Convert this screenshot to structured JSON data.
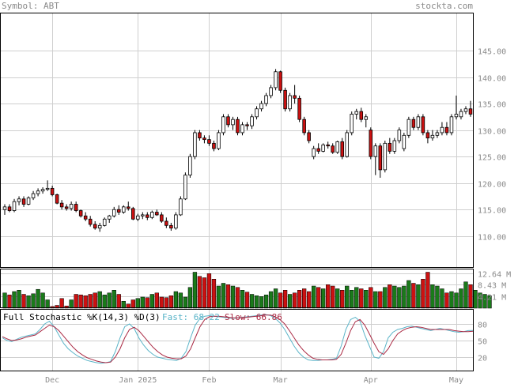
{
  "header": {
    "symbol_label": "Symbol: ABT",
    "site": "stockta.com"
  },
  "chart_data": [
    {
      "type": "candlestick",
      "title": "",
      "ylim": [
        104,
        152
      ],
      "yticks": [
        110,
        115,
        120,
        125,
        130,
        135,
        140,
        145
      ],
      "ytick_labels": [
        "110.00",
        "115.00",
        "120.00",
        "125.00",
        "130.00",
        "135.00",
        "140.00",
        "145.00"
      ],
      "x_labels": [
        "Dec",
        "Jan 2025",
        "Feb",
        "Mar",
        "Apr",
        "May"
      ],
      "grid": true,
      "up_color": "#ffffff",
      "down_color": "#cc1111",
      "ohlc": [
        [
          115.0,
          116.0,
          114.0,
          115.5
        ],
        [
          115.5,
          116.0,
          114.5,
          114.8
        ],
        [
          114.8,
          117.0,
          114.5,
          116.5
        ],
        [
          116.5,
          117.5,
          115.8,
          117.0
        ],
        [
          117.0,
          117.5,
          115.5,
          116.0
        ],
        [
          116.0,
          117.5,
          115.8,
          117.2
        ],
        [
          117.2,
          118.5,
          116.8,
          118.0
        ],
        [
          118.0,
          119.0,
          117.5,
          118.5
        ],
        [
          118.5,
          119.2,
          118.0,
          118.8
        ],
        [
          118.8,
          120.5,
          118.5,
          119.0
        ],
        [
          119.0,
          119.5,
          117.5,
          117.8
        ],
        [
          117.8,
          118.0,
          116.0,
          116.2
        ],
        [
          116.2,
          116.8,
          115.0,
          115.5
        ],
        [
          115.5,
          116.0,
          114.8,
          115.2
        ],
        [
          115.2,
          116.5,
          114.8,
          116.0
        ],
        [
          116.0,
          116.5,
          114.5,
          114.8
        ],
        [
          114.8,
          115.0,
          113.5,
          113.8
        ],
        [
          113.8,
          114.5,
          112.8,
          113.2
        ],
        [
          113.2,
          113.8,
          111.8,
          112.2
        ],
        [
          112.2,
          112.8,
          111.2,
          111.5
        ],
        [
          111.5,
          112.5,
          110.8,
          112.0
        ],
        [
          112.0,
          113.5,
          111.8,
          113.2
        ],
        [
          113.2,
          114.0,
          112.5,
          113.8
        ],
        [
          113.8,
          115.5,
          113.5,
          115.0
        ],
        [
          115.0,
          115.8,
          114.0,
          114.5
        ],
        [
          114.5,
          115.8,
          114.2,
          115.5
        ],
        [
          115.5,
          116.5,
          114.8,
          115.2
        ],
        [
          115.2,
          115.5,
          113.0,
          113.2
        ],
        [
          113.2,
          114.2,
          112.8,
          113.8
        ],
        [
          113.8,
          114.5,
          113.2,
          114.0
        ],
        [
          114.0,
          114.5,
          113.0,
          113.5
        ],
        [
          113.5,
          114.8,
          113.2,
          114.5
        ],
        [
          114.5,
          115.0,
          113.8,
          114.0
        ],
        [
          114.0,
          114.5,
          112.5,
          112.8
        ],
        [
          112.8,
          113.5,
          111.5,
          112.0
        ],
        [
          112.0,
          112.5,
          111.0,
          111.5
        ],
        [
          111.5,
          114.5,
          111.2,
          114.0
        ],
        [
          114.0,
          117.5,
          113.8,
          117.0
        ],
        [
          117.0,
          122.0,
          116.8,
          121.5
        ],
        [
          121.5,
          125.5,
          121.0,
          125.0
        ],
        [
          125.0,
          130.0,
          124.5,
          129.5
        ],
        [
          129.5,
          130.0,
          128.0,
          128.5
        ],
        [
          128.5,
          129.0,
          127.5,
          128.2
        ],
        [
          128.2,
          129.0,
          127.0,
          127.5
        ],
        [
          127.5,
          128.0,
          126.0,
          126.5
        ],
        [
          126.5,
          130.0,
          126.2,
          129.5
        ],
        [
          129.5,
          133.0,
          129.0,
          132.5
        ],
        [
          132.5,
          133.0,
          130.5,
          131.0
        ],
        [
          131.0,
          132.5,
          130.0,
          132.0
        ],
        [
          132.0,
          132.5,
          129.0,
          129.5
        ],
        [
          129.5,
          131.5,
          129.0,
          131.0
        ],
        [
          131.0,
          131.5,
          130.0,
          130.8
        ],
        [
          130.8,
          133.0,
          130.2,
          132.5
        ],
        [
          132.5,
          134.5,
          132.0,
          134.0
        ],
        [
          134.0,
          135.5,
          133.5,
          135.0
        ],
        [
          135.0,
          137.0,
          134.5,
          136.5
        ],
        [
          136.5,
          138.5,
          136.0,
          138.0
        ],
        [
          138.0,
          141.5,
          137.5,
          141.0
        ],
        [
          141.0,
          141.2,
          137.0,
          137.5
        ],
        [
          137.5,
          138.0,
          133.5,
          134.0
        ],
        [
          134.0,
          137.0,
          133.5,
          136.5
        ],
        [
          136.5,
          138.5,
          135.0,
          136.0
        ],
        [
          136.0,
          136.5,
          131.5,
          132.0
        ],
        [
          132.0,
          132.5,
          129.0,
          129.5
        ],
        [
          129.5,
          130.0,
          127.5,
          128.0
        ],
        [
          125.0,
          127.0,
          124.5,
          126.5
        ],
        [
          126.5,
          127.5,
          125.5,
          126.0
        ],
        [
          126.0,
          127.5,
          125.8,
          127.2
        ],
        [
          127.2,
          127.8,
          126.5,
          127.0
        ],
        [
          127.0,
          127.5,
          125.5,
          125.8
        ],
        [
          125.8,
          128.0,
          125.5,
          127.8
        ],
        [
          127.8,
          128.5,
          124.5,
          125.0
        ],
        [
          125.0,
          130.0,
          124.8,
          129.5
        ],
        [
          129.5,
          133.5,
          129.0,
          133.0
        ],
        [
          133.0,
          134.0,
          132.0,
          133.5
        ],
        [
          133.5,
          134.2,
          131.5,
          132.0
        ],
        [
          132.0,
          133.0,
          130.5,
          132.5
        ],
        [
          130.0,
          130.5,
          124.5,
          125.0
        ],
        [
          125.0,
          127.5,
          121.5,
          127.0
        ],
        [
          127.0,
          127.5,
          121.0,
          122.5
        ],
        [
          122.5,
          128.0,
          122.0,
          127.5
        ],
        [
          127.5,
          128.5,
          125.5,
          126.0
        ],
        [
          126.0,
          128.5,
          125.5,
          128.0
        ],
        [
          128.0,
          130.5,
          127.5,
          130.0
        ],
        [
          126.5,
          129.5,
          126.0,
          129.0
        ],
        [
          129.0,
          132.5,
          128.5,
          132.0
        ],
        [
          132.0,
          132.5,
          130.0,
          130.5
        ],
        [
          130.5,
          133.0,
          130.0,
          132.5
        ],
        [
          132.5,
          133.0,
          129.0,
          129.5
        ],
        [
          129.5,
          130.0,
          127.5,
          128.5
        ],
        [
          128.5,
          130.0,
          128.0,
          129.0
        ],
        [
          129.0,
          130.0,
          128.5,
          129.5
        ],
        [
          129.5,
          131.5,
          129.0,
          130.5
        ],
        [
          130.5,
          131.5,
          129.0,
          129.5
        ],
        [
          129.5,
          133.0,
          129.0,
          132.5
        ],
        [
          132.5,
          136.5,
          132.0,
          133.0
        ],
        [
          132.5,
          134.0,
          132.0,
          133.5
        ],
        [
          133.5,
          134.5,
          133.0,
          134.0
        ],
        [
          134.0,
          135.5,
          132.5,
          133.0
        ]
      ]
    },
    {
      "type": "bar",
      "title": "",
      "ylim": [
        0,
        14
      ],
      "ytick_labels": [
        "12.64 M",
        "8.43 M",
        "4.21 M"
      ],
      "yticks": [
        12.64,
        8.43,
        4.21
      ],
      "values": [
        5.5,
        4.8,
        6.0,
        6.5,
        5.0,
        4.5,
        5.2,
        6.8,
        5.5,
        3.0,
        0.6,
        1.0,
        3.5,
        0.8,
        3.0,
        5.0,
        4.8,
        4.5,
        5.0,
        5.5,
        6.0,
        4.8,
        5.5,
        6.5,
        5.0,
        2.5,
        1.5,
        3.0,
        3.5,
        4.0,
        3.8,
        5.0,
        5.5,
        4.0,
        3.8,
        4.5,
        6.0,
        5.5,
        4.0,
        7.5,
        13.0,
        11.5,
        11.0,
        12.5,
        10.5,
        8.0,
        9.0,
        8.5,
        8.0,
        7.5,
        6.5,
        5.8,
        5.0,
        4.5,
        4.2,
        4.8,
        6.0,
        7.0,
        5.5,
        6.5,
        5.0,
        5.5,
        6.5,
        7.0,
        6.0,
        8.0,
        7.5,
        7.0,
        8.5,
        8.0,
        7.0,
        6.5,
        8.0,
        6.5,
        7.5,
        7.0,
        6.5,
        7.5,
        6.0,
        6.0,
        7.5,
        8.5,
        8.0,
        7.5,
        8.0,
        10.0,
        9.0,
        8.5,
        10.5,
        13.0,
        8.5,
        8.0,
        7.0,
        5.5,
        6.0,
        5.5,
        7.0,
        9.5,
        8.5,
        6.5,
        5.5,
        5.0,
        4.5
      ],
      "up_color": "#1a7a1a",
      "down_color": "#cc1111"
    },
    {
      "type": "line",
      "title": "Full Stochastic %K(14,3) %D(3)",
      "ylim": [
        0,
        100
      ],
      "yticks": [
        80,
        50,
        20
      ],
      "ytick_labels": [
        "80",
        "50",
        "20"
      ],
      "series": [
        {
          "name": "Fast: 68.22",
          "color": "#5ab4c8",
          "values": [
            55,
            50,
            48,
            52,
            56,
            58,
            60,
            62,
            70,
            80,
            85,
            75,
            60,
            45,
            35,
            28,
            22,
            18,
            14,
            12,
            10,
            9,
            10,
            12,
            30,
            55,
            75,
            80,
            72,
            55,
            42,
            32,
            25,
            20,
            18,
            16,
            15,
            14,
            18,
            30,
            55,
            78,
            90,
            94,
            95,
            94,
            93,
            92,
            91,
            90,
            91,
            92,
            93,
            94,
            95,
            96,
            97,
            95,
            90,
            82,
            70,
            55,
            40,
            28,
            20,
            15,
            14,
            14,
            15,
            15,
            16,
            18,
            40,
            70,
            88,
            92,
            85,
            60,
            40,
            20,
            18,
            30,
            55,
            65,
            70,
            72,
            75,
            76,
            74,
            72,
            70,
            68,
            70,
            72,
            70,
            68,
            66,
            65,
            66,
            68,
            68.22
          ]
        },
        {
          "name": "Slow: 66.86",
          "color": "#aa2a44",
          "values": [
            57,
            53,
            50,
            51,
            53,
            56,
            58,
            60,
            66,
            72,
            78,
            75,
            68,
            58,
            48,
            38,
            30,
            24,
            19,
            16,
            13,
            11,
            10,
            11,
            20,
            35,
            55,
            70,
            74,
            68,
            58,
            48,
            38,
            30,
            24,
            20,
            18,
            17,
            17,
            22,
            35,
            55,
            75,
            88,
            93,
            94,
            94,
            93,
            92,
            91,
            91,
            91,
            92,
            93,
            94,
            95,
            96,
            96,
            93,
            88,
            80,
            68,
            55,
            42,
            32,
            24,
            18,
            16,
            15,
            15,
            15,
            16,
            25,
            45,
            68,
            84,
            88,
            78,
            62,
            45,
            30,
            25,
            35,
            50,
            62,
            68,
            72,
            74,
            75,
            74,
            72,
            70,
            70,
            70,
            70,
            70,
            68,
            67,
            66,
            66,
            66.86
          ]
        }
      ]
    }
  ]
}
